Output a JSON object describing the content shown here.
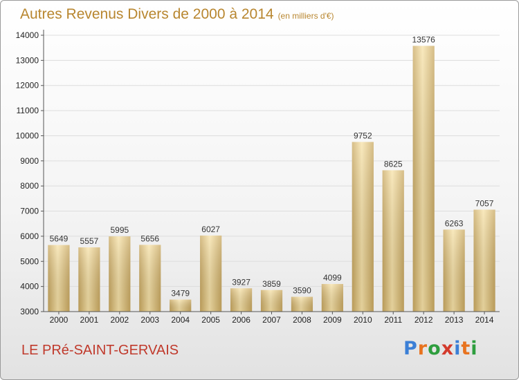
{
  "title": "Autres Revenus Divers de 2000 à 2014",
  "unit": "(en milliers d'€)",
  "commune": "LE PRé-SAINT-GERVAIS",
  "logo": {
    "text": "Proxiti",
    "letter_colors": [
      "#3b7fd6",
      "#e8731f",
      "#2e9e3e",
      "#d33a2c",
      "#3b7fd6",
      "#e8731f",
      "#2e9e3e"
    ]
  },
  "colors": {
    "title": "#b8862f",
    "commune": "#c0392b",
    "bar_light": "#f7e2a8",
    "bar_dark": "#c9a860",
    "grid": "#dddddd"
  },
  "chart_data": {
    "type": "bar",
    "title": "Autres Revenus Divers de 2000 à 2014",
    "subtitle": "(en milliers d'€)",
    "categories": [
      "2000",
      "2001",
      "2002",
      "2003",
      "2004",
      "2005",
      "2006",
      "2007",
      "2008",
      "2009",
      "2010",
      "2011",
      "2012",
      "2013",
      "2014"
    ],
    "values": [
      5649,
      5557,
      5995,
      5656,
      3479,
      6027,
      3927,
      3859,
      3590,
      4099,
      9752,
      8625,
      13576,
      6263,
      7057
    ],
    "ylim": [
      3000,
      14000
    ],
    "yticks": [
      3000,
      4000,
      5000,
      6000,
      7000,
      8000,
      9000,
      10000,
      11000,
      12000,
      13000,
      14000
    ],
    "grid": true,
    "data_labels": true,
    "xlabel": "",
    "ylabel": ""
  }
}
